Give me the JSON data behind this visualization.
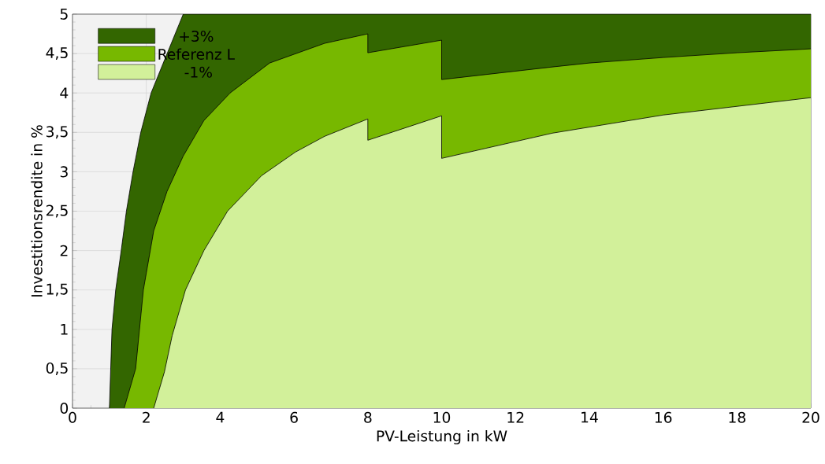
{
  "chart_data": {
    "type": "area",
    "xlabel": "PV-Leistung in kW",
    "ylabel": "Investitionsrendite in %",
    "xlim": [
      0,
      20
    ],
    "ylim": [
      0,
      5
    ],
    "xticks": [
      0,
      2,
      4,
      6,
      8,
      10,
      12,
      14,
      16,
      18,
      20
    ],
    "yticks": [
      0,
      {
        "value": 0.5,
        "label": "0,5"
      },
      1,
      {
        "value": 1.5,
        "label": "1,5"
      },
      2,
      {
        "value": 2.5,
        "label": "2,5"
      },
      3,
      {
        "value": 3.5,
        "label": "3,5"
      },
      4,
      {
        "value": 4.5,
        "label": "4,5"
      },
      5
    ],
    "grid": true,
    "legend": "top left",
    "series": [
      {
        "name": "+3%",
        "color": "#336600",
        "x": [
          1.0,
          1.07,
          1.17,
          1.32,
          1.46,
          1.64,
          1.85,
          2.13,
          2.52,
          3.0,
          20
        ],
        "values": [
          0,
          1.0,
          1.5,
          2.0,
          2.5,
          3.0,
          3.5,
          4.0,
          4.45,
          5,
          5
        ]
      },
      {
        "name": "Referenz L",
        "color": "#77b800",
        "x": [
          1.4,
          1.71,
          1.92,
          2.2,
          2.56,
          3.0,
          3.56,
          4.27,
          5.34,
          6.83,
          8,
          8,
          10,
          10,
          13,
          14,
          16,
          18,
          20
        ],
        "values": [
          0,
          0.5,
          1.5,
          2.25,
          2.75,
          3.2,
          3.65,
          4.0,
          4.38,
          4.63,
          4.75,
          4.51,
          4.67,
          4.17,
          4.33,
          4.38,
          4.45,
          4.51,
          4.56
        ]
      },
      {
        "name": " -1%",
        "color": "#d2f09a",
        "x": [
          2.2,
          2.49,
          2.7,
          3.06,
          3.56,
          4.2,
          5.12,
          6.04,
          6.83,
          8,
          8,
          10,
          10,
          13,
          16,
          20
        ],
        "values": [
          0,
          0.46,
          0.92,
          1.5,
          2.0,
          2.5,
          2.95,
          3.25,
          3.45,
          3.67,
          3.4,
          3.71,
          3.17,
          3.49,
          3.72,
          3.94
        ]
      }
    ]
  }
}
